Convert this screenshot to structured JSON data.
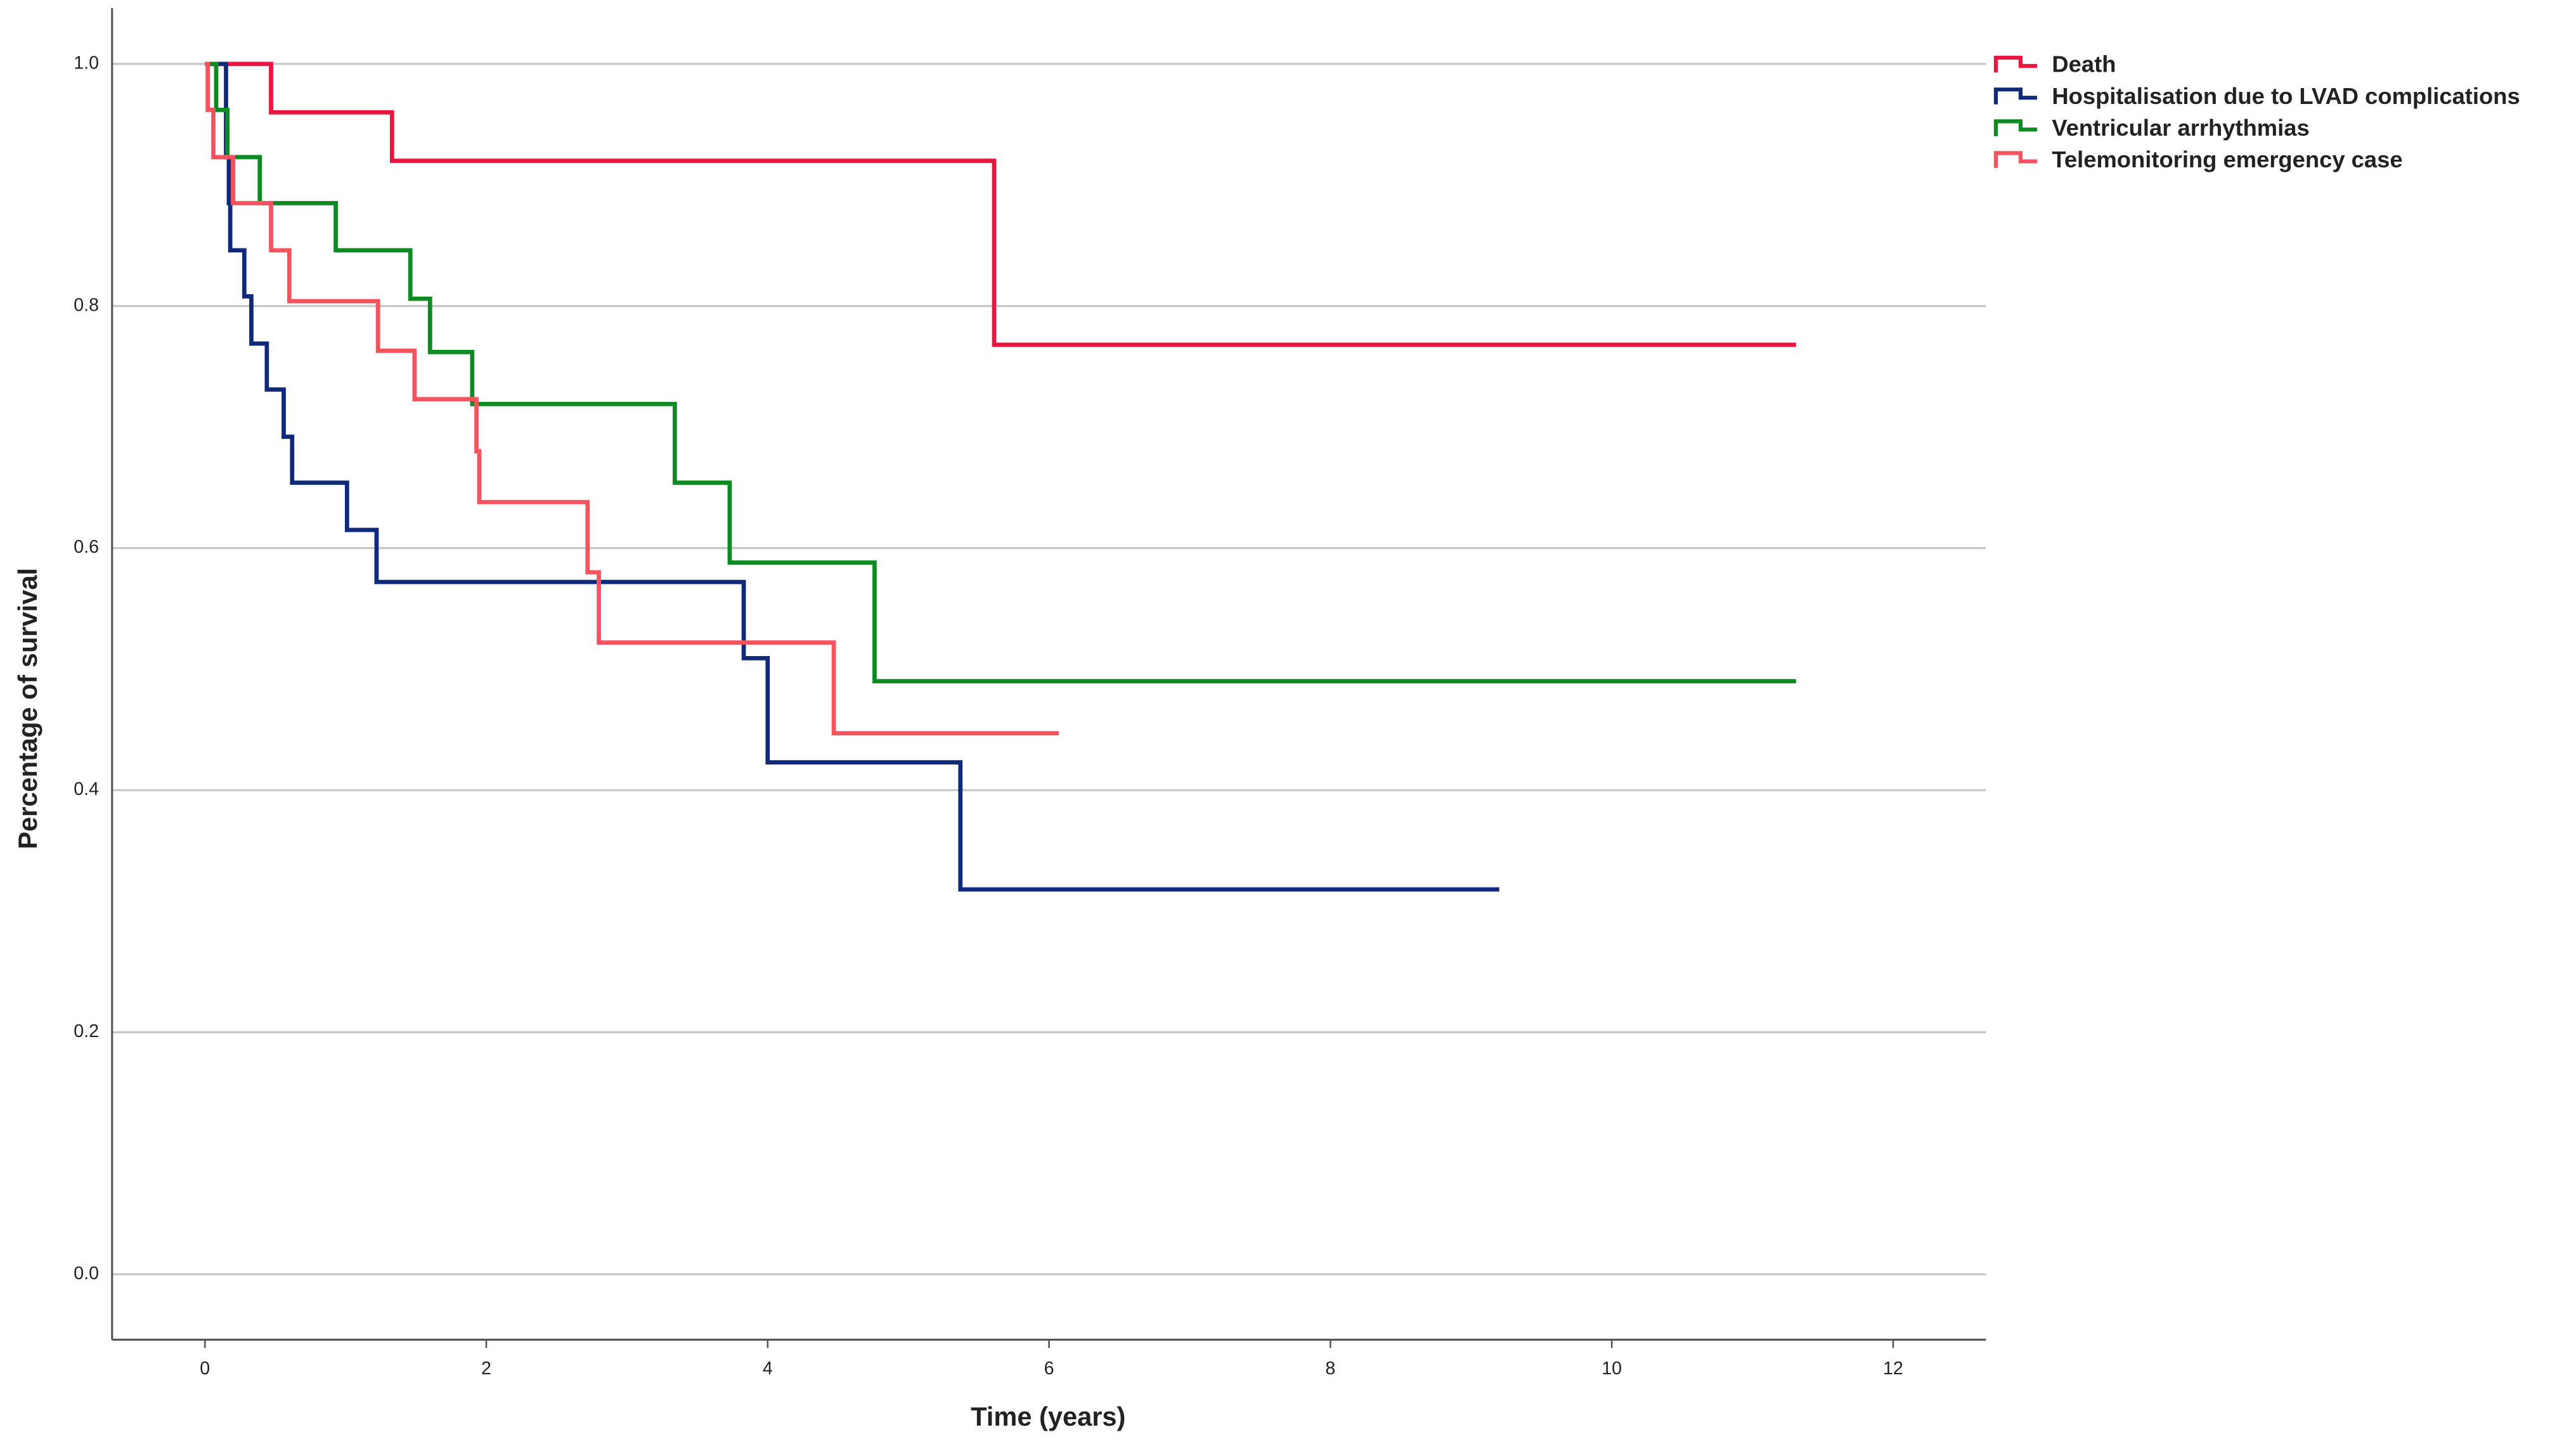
{
  "chart_data": {
    "type": "step",
    "xlabel": "Time (years)",
    "ylabel": "Percentage of survival",
    "xlim": [
      -0.66,
      12.66
    ],
    "ylim": [
      -0.054,
      1.046
    ],
    "xticks": [
      0,
      2,
      4,
      6,
      8,
      10,
      12
    ],
    "yticks": [
      {
        "value": 0,
        "label": "0.0"
      },
      0.2,
      0.4,
      0.6,
      0.8,
      {
        "value": 1,
        "label": "1.0"
      }
    ],
    "grid": true,
    "legend": "top-right",
    "series": [
      {
        "name": "Death",
        "color": "#e8173f",
        "x": [
          0,
          0.47,
          1.33,
          5.61,
          11.31
        ],
        "values": [
          1.0,
          0.96,
          0.92,
          0.768,
          0.768
        ]
      },
      {
        "name": "Hospitalisation due to LVAD complications",
        "color": "#0f2a7a",
        "x": [
          0,
          0.15,
          0.17,
          0.18,
          0.28,
          0.33,
          0.44,
          0.56,
          0.62,
          1.01,
          1.22,
          3.83,
          4.0,
          5.37,
          9.2
        ],
        "values": [
          1.0,
          0.923,
          0.885,
          0.846,
          0.808,
          0.769,
          0.731,
          0.692,
          0.654,
          0.615,
          0.572,
          0.509,
          0.423,
          0.318,
          0.318
        ]
      },
      {
        "name": "Ventricular arrhythmias",
        "color": "#0e8a22",
        "x": [
          0,
          0.08,
          0.16,
          0.39,
          0.93,
          1.46,
          1.6,
          1.9,
          3.34,
          3.73,
          4.76,
          11.31
        ],
        "values": [
          1.0,
          0.962,
          0.923,
          0.885,
          0.846,
          0.806,
          0.762,
          0.719,
          0.654,
          0.588,
          0.49,
          0.49
        ]
      },
      {
        "name": "Telemonitoring emergency case",
        "color": "#f5545e",
        "x": [
          0,
          0.02,
          0.06,
          0.2,
          0.47,
          0.6,
          1.23,
          1.49,
          1.93,
          1.95,
          2.72,
          2.8,
          4.47,
          6.07
        ],
        "values": [
          1.0,
          0.962,
          0.923,
          0.885,
          0.846,
          0.804,
          0.763,
          0.723,
          0.68,
          0.638,
          0.58,
          0.522,
          0.447,
          0.447
        ]
      }
    ]
  }
}
